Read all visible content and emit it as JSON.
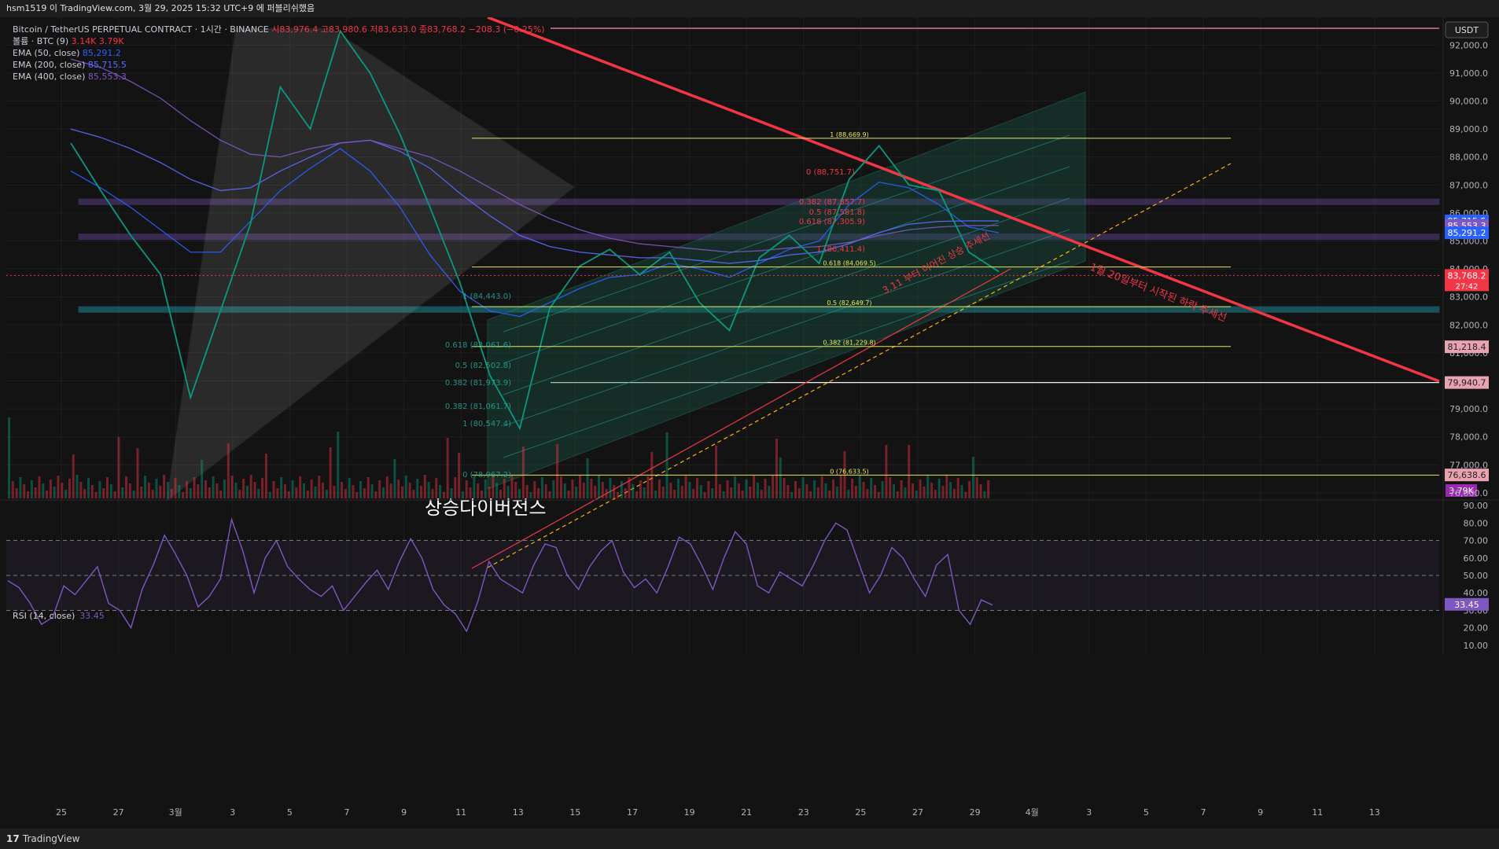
{
  "header": {
    "title": "hsm1519 이 TradingView.com, 3월 29, 2025 15:32 UTC+9 에 퍼블리쉬했음"
  },
  "legend": {
    "symbol": "Bitcoin / TetherUS PERPETUAL CONTRACT · 1시간 · BINANCE",
    "ohlc": "시83,976.4 고83,980.6 저83,633.0 종83,768.2 −208.3 (−0.25%)",
    "volume_label": "볼륨 · BTC (9)",
    "volume_values": "3.14K 3.79K",
    "ema50_label": "EMA (50, close)",
    "ema50_value": "85,291.2",
    "ema200_label": "EMA (200, close)",
    "ema200_value": "85,715.5",
    "ema400_label": "EMA (400, close)",
    "ema400_value": "85,553.3"
  },
  "rsi": {
    "label": "RSI (14, close)",
    "value": "33.45"
  },
  "footer": {
    "brand": "TradingView"
  },
  "colors": {
    "background": "#131313",
    "up": "#089981",
    "down": "#f23645",
    "trend_red": "#f23645",
    "ema50": "#2962ff",
    "ema200": "#5b6bff",
    "ema400": "#7e57c2",
    "rsi": "#7e57c2",
    "fib": "#e8e85c",
    "support": "#26c6da",
    "resistance_zone": "#7e57c2"
  },
  "chart_data": {
    "type": "line",
    "title": "Bitcoin / TetherUS PERPETUAL CONTRACT · 1시간 · BINANCE",
    "currency": "USDT",
    "x_ticks": [
      "25",
      "27",
      "3월",
      "3",
      "5",
      "7",
      "9",
      "11",
      "13",
      "15",
      "17",
      "19",
      "21",
      "23",
      "25",
      "27",
      "29",
      "4월",
      "3",
      "5",
      "7",
      "9",
      "11",
      "13"
    ],
    "price_ticks": [
      "92,000.0",
      "91,000.0",
      "90,000.0",
      "89,000.0",
      "88,000.0",
      "87,000.0",
      "86,000.0",
      "85,000.0",
      "84,000.0",
      "83,000.0",
      "82,000.0",
      "81,000.0",
      "80,000.0",
      "79,000.0",
      "78,000.0",
      "77,000.0",
      "76,000.0"
    ],
    "ylim": [
      75800,
      92600
    ],
    "price_badges": [
      {
        "label": "85,715.5",
        "value": 85715.5,
        "color": "#2962ff"
      },
      {
        "label": "85,553.3",
        "value": 85553.3,
        "color": "#7e57c2"
      },
      {
        "label": "85,291.2",
        "value": 85291.2,
        "color": "#2962ff"
      },
      {
        "label": "83,768.2",
        "value": 83768.2,
        "color": "#f23645",
        "sub": "27:42"
      },
      {
        "label": "81,218.4",
        "value": 81218.4,
        "color": "#e8a2b0"
      },
      {
        "label": "79,940.7",
        "value": 79940.7,
        "color": "#e8a2b0"
      },
      {
        "label": "76,638.6",
        "value": 76638.6,
        "color": "#e8a2b0"
      }
    ],
    "volume_badge": "3.79K",
    "series": [
      {
        "name": "price",
        "values": [
          88500,
          86800,
          85200,
          83800,
          79400,
          82500,
          85600,
          90500,
          89000,
          92500,
          91000,
          88800,
          86200,
          83500,
          80200,
          78300,
          82600,
          84100,
          84700,
          83800,
          84600,
          82800,
          81800,
          84400,
          85200,
          84200,
          87200,
          88400,
          87000,
          86800,
          84600,
          83900
        ]
      },
      {
        "name": "EMA (50, close)",
        "values": [
          87500,
          86900,
          86200,
          85400,
          84600,
          84600,
          85700,
          86800,
          87600,
          88300,
          87500,
          86200,
          84500,
          83200,
          82500,
          82300,
          82800,
          83300,
          83700,
          83800,
          84200,
          84000,
          83700,
          84200,
          84700,
          85000,
          86300,
          87100,
          86900,
          86300,
          85500,
          85291
        ]
      },
      {
        "name": "EMA (200, close)",
        "values": [
          89000,
          88700,
          88300,
          87800,
          87200,
          86800,
          86900,
          87500,
          88000,
          88500,
          88600,
          88200,
          87600,
          86700,
          85900,
          85200,
          84800,
          84600,
          84500,
          84400,
          84400,
          84300,
          84200,
          84300,
          84500,
          84600,
          84900,
          85300,
          85600,
          85700,
          85720,
          85715
        ]
      },
      {
        "name": "EMA (400, close)",
        "values": [
          91500,
          91200,
          90700,
          90100,
          89300,
          88600,
          88100,
          88000,
          88300,
          88500,
          88600,
          88300,
          88000,
          87500,
          86900,
          86300,
          85800,
          85400,
          85100,
          84900,
          84800,
          84700,
          84600,
          84650,
          84750,
          84800,
          84950,
          85200,
          85400,
          85500,
          85550,
          85553
        ]
      }
    ],
    "fib_top": {
      "labels": [
        "0 (88,751.7)",
        "0.382 (87,857.7)",
        "0.5 (87,581.8)",
        "0.618 (87,305.9)",
        "1 (86,411.4)"
      ]
    },
    "fib_large": {
      "labels": [
        "1 (88,669.9)",
        "0.618 (84,069.5)",
        "0.5 (82,649.7)",
        "0.382 (81,229.8)",
        "0 (76,633.5)"
      ],
      "values": [
        88669.9,
        84069.5,
        82649.7,
        81229.8,
        76633.5
      ]
    },
    "fib_left": {
      "labels": [
        "1 (84,443.0)",
        "0.618 (83,061.6)",
        "0.5 (82,502.8)",
        "0.382 (81,973.9)",
        "0.382 (81,061.7)",
        "1 (80,547.4)",
        "0 (78,967.2)"
      ]
    },
    "horizontal_levels": [
      {
        "value": 92600,
        "color": "#f48fb1"
      },
      {
        "value": 79940.7,
        "color": "#f5f5f5"
      }
    ],
    "zones": [
      {
        "from": 86300,
        "to": 86500,
        "color": "#7e57c2"
      },
      {
        "from": 85050,
        "to": 85250,
        "color": "#7e57c2"
      },
      {
        "from": 82450,
        "to": 82650,
        "color": "#26c6da"
      }
    ],
    "annotations": [
      {
        "text": "상승다이버전스"
      },
      {
        "text": "1월 20일부터 시작된 하락 추세선"
      },
      {
        "text": "3.11 부터 이어진 상승 추세선"
      }
    ],
    "rsi_ticks": [
      "90.00",
      "80.00",
      "70.00",
      "60.00",
      "50.00",
      "40.00",
      "30.00",
      "20.00",
      "10.00"
    ],
    "rsi_ylim": [
      5,
      95
    ],
    "rsi_bands": [
      70,
      50,
      30
    ],
    "rsi_values": [
      47,
      43,
      34,
      22,
      26,
      44,
      39,
      47,
      55,
      34,
      30,
      20,
      42,
      56,
      73,
      62,
      50,
      32,
      38,
      48,
      82,
      64,
      40,
      60,
      70,
      55,
      48,
      42,
      38,
      44,
      30,
      38,
      46,
      53,
      42,
      58,
      71,
      60,
      42,
      33,
      28,
      18,
      35,
      58,
      48,
      44,
      40,
      56,
      68,
      66,
      50,
      42,
      55,
      64,
      70,
      52,
      43,
      48,
      40,
      55,
      72,
      68,
      56,
      42,
      60,
      75,
      68,
      44,
      40,
      52,
      48,
      44,
      56,
      70,
      80,
      76,
      58,
      40,
      50,
      66,
      60,
      48,
      38,
      56,
      62,
      30,
      22,
      36,
      33
    ]
  }
}
